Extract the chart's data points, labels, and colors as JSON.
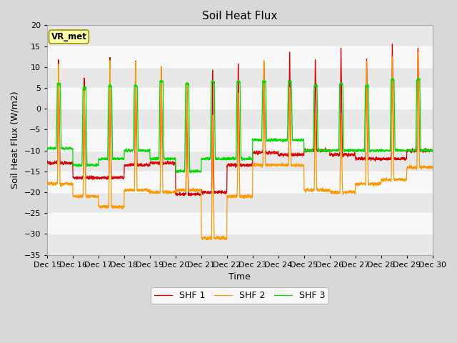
{
  "title": "Soil Heat Flux",
  "ylabel": "Soil Heat Flux (W/m2)",
  "xlabel": "Time",
  "ylim": [
    -35,
    20
  ],
  "yticks": [
    -35,
    -30,
    -25,
    -20,
    -15,
    -10,
    -5,
    0,
    5,
    10,
    15,
    20
  ],
  "xtick_labels": [
    "Dec 15",
    "Dec 16",
    "Dec 17",
    "Dec 18",
    "Dec 19",
    "Dec 20",
    "Dec 21",
    "Dec 22",
    "Dec 23",
    "Dec 24",
    "Dec 25",
    "Dec 26",
    "Dec 27",
    "Dec 28",
    "Dec 29",
    "Dec 30"
  ],
  "colors": {
    "SHF 1": "#dd0000",
    "SHF 2": "#ff9900",
    "SHF 3": "#00dd00"
  },
  "vr_met_label": "VR_met",
  "background_color": "#d8d8d8",
  "plot_bg_color": "#f2f2f2",
  "grid_color": "#ffffff",
  "title_fontsize": 11,
  "axis_label_fontsize": 9,
  "tick_fontsize": 8
}
